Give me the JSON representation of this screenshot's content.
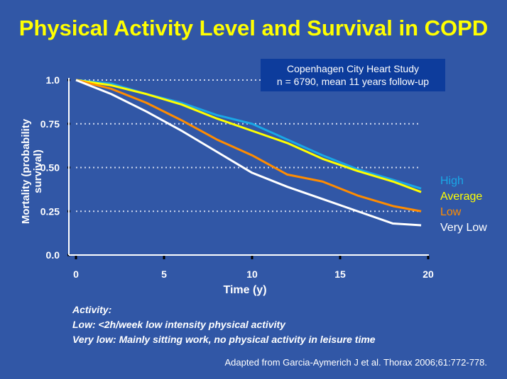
{
  "title": "Physical Activity Level and Survival in COPD",
  "study_box": {
    "line1": "Copenhagen  City Heart Study",
    "line2": "n = 6790, mean  11 years follow-up"
  },
  "notes": {
    "heading": "Activity:",
    "low": "Low:  <2h/week low intensity physical activity",
    "very_low": "Very low: Mainly sitting work, no physical activity in leisure time"
  },
  "source": "Adapted from Garcia-Aymerich  J et al. Thorax 2006;61:772-778.",
  "chart_data": {
    "type": "line",
    "title": "",
    "xlabel": "Time (y)",
    "ylabel": "Mortality (probability survival)",
    "xlim": [
      0,
      20
    ],
    "ylim": [
      0,
      1
    ],
    "xticks": [
      "0",
      "5",
      "10",
      "15",
      "20"
    ],
    "yticks": [
      "0.0",
      "0.25",
      "0.50",
      "0.75",
      "1.0"
    ],
    "grid": "dotted horizontal",
    "legend": "right, labels at line ends",
    "x": [
      0,
      2,
      4,
      6,
      8,
      10,
      12,
      14,
      16,
      18,
      19.6
    ],
    "series": [
      {
        "name": "High",
        "color": "#1aa7e6",
        "values": [
          1.0,
          0.98,
          0.92,
          0.87,
          0.8,
          0.75,
          0.66,
          0.57,
          0.49,
          0.43,
          0.38
        ]
      },
      {
        "name": "Average",
        "color": "#ffff00",
        "values": [
          1.0,
          0.97,
          0.92,
          0.86,
          0.78,
          0.71,
          0.64,
          0.55,
          0.48,
          0.42,
          0.36
        ]
      },
      {
        "name": "Low",
        "color": "#ff8c00",
        "values": [
          1.0,
          0.95,
          0.87,
          0.77,
          0.66,
          0.57,
          0.46,
          0.42,
          0.34,
          0.28,
          0.25
        ]
      },
      {
        "name": "Very Low",
        "color": "#ffffff",
        "values": [
          1.0,
          0.92,
          0.82,
          0.71,
          0.59,
          0.47,
          0.39,
          0.32,
          0.25,
          0.18,
          0.17
        ]
      }
    ]
  }
}
